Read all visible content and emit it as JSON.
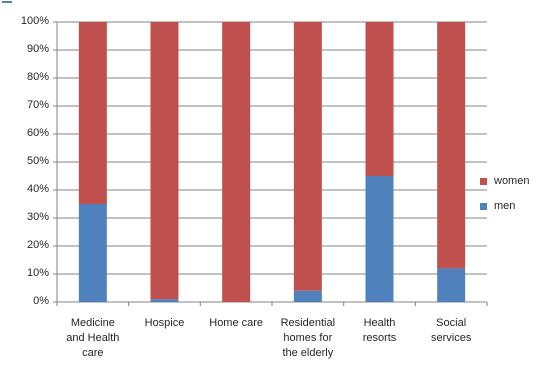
{
  "chart_data": {
    "type": "bar",
    "stacked": true,
    "percent": true,
    "categories": [
      "Medicine and Health care",
      "Hospice",
      "Home care",
      "Residential homes for the elderly",
      "Health resorts",
      "Social services"
    ],
    "category_lines": [
      [
        "Medicine",
        "and Health",
        "care"
      ],
      [
        "Hospice"
      ],
      [
        "Home care"
      ],
      [
        "Residential",
        "homes for",
        "the elderly"
      ],
      [
        "Health",
        "resorts"
      ],
      [
        "Social",
        "services"
      ]
    ],
    "series": [
      {
        "name": "men",
        "color": "#4f81bd",
        "values": [
          35,
          1,
          0,
          4,
          45,
          12
        ]
      },
      {
        "name": "women",
        "color": "#c0504d",
        "values": [
          65,
          99,
          100,
          96,
          55,
          88
        ]
      }
    ],
    "y_ticks": [
      "0%",
      "10%",
      "20%",
      "30%",
      "40%",
      "50%",
      "60%",
      "70%",
      "80%",
      "90%",
      "100%"
    ],
    "ylim": [
      0,
      100
    ],
    "grid": true,
    "legend_position": "right",
    "legend_order": [
      "women",
      "men"
    ],
    "title": "",
    "xlabel": "",
    "ylabel": ""
  }
}
